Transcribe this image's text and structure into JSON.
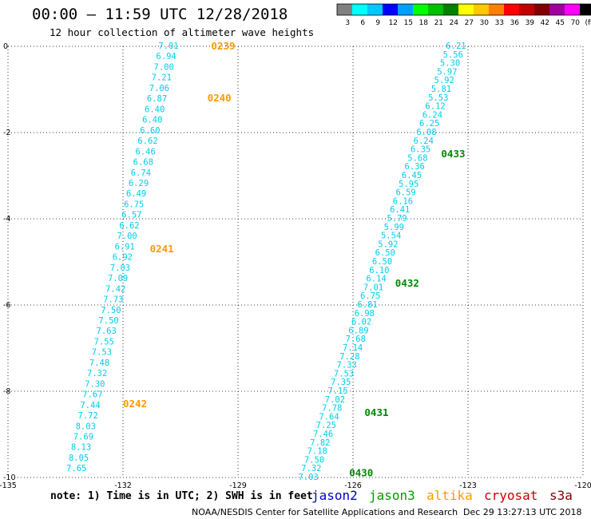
{
  "header": {
    "title": "00:00 – 11:59 UTC 12/28/2018",
    "subtitle": "12 hour collection of altimeter wave heights"
  },
  "legend": {
    "colors": [
      "#808080",
      "#00ffff",
      "#00c8ff",
      "#0000ff",
      "#00a0ff",
      "#00ff00",
      "#00c000",
      "#008000",
      "#ffff00",
      "#ffc800",
      "#ff8000",
      "#ff0000",
      "#c00000",
      "#800000",
      "#a000a0",
      "#ff00ff",
      "#000000"
    ],
    "labels": [
      "3",
      "6",
      "9",
      "12",
      "15",
      "18",
      "21",
      "24",
      "27",
      "30",
      "33",
      "36",
      "39",
      "42",
      "45",
      "70",
      "(ft)"
    ]
  },
  "chart_data": {
    "type": "scatter",
    "title": "00:00 – 11:59 UTC 12/28/2018",
    "subtitle": "12 hour collection of altimeter wave heights",
    "xlim": [
      -135,
      -120
    ],
    "ylim": [
      -10,
      0
    ],
    "x_ticks": [
      "-135",
      "-132",
      "-129",
      "-126",
      "-123",
      "-120"
    ],
    "y_ticks": [
      "0",
      "-2",
      "-4",
      "-6",
      "-8",
      "-10"
    ],
    "grid": true,
    "series": [
      {
        "name": "altika",
        "color": "#00ccee",
        "x_start": -130.55,
        "y_start": 0.0,
        "x_end": -132.95,
        "y_end": -9.8,
        "values": [
          "7.01",
          "6.94",
          "7.00",
          "7.21",
          "7.06",
          "6.87",
          "6.40",
          "6.40",
          "6.60",
          "6.62",
          "6.46",
          "6.68",
          "6.74",
          "6.29",
          "6.49",
          "6.75",
          "6.57",
          "6.62",
          "7.00",
          "6.91",
          "6.92",
          "7.03",
          "7.09",
          "7.42",
          "7.73",
          "7.50",
          "7.50",
          "7.63",
          "7.55",
          "7.53",
          "7.48",
          "7.32",
          "7.30",
          "7.67",
          "7.44",
          "7.72",
          "8.03",
          "7.69",
          "8.13",
          "8.05",
          "7.65"
        ]
      },
      {
        "name": "jason3",
        "color": "#00ccee",
        "x_start": -123.05,
        "y_start": 0.0,
        "x_end": -126.9,
        "y_end": -10.0,
        "values": [
          "6.21",
          "5.56",
          "5.30",
          "5.97",
          "5.92",
          "5.81",
          "5.53",
          "6.12",
          "6.24",
          "6.25",
          "6.08",
          "6.24",
          "6.35",
          "5.68",
          "6.36",
          "6.45",
          "5.95",
          "6.59",
          "6.16",
          "6.41",
          "5.79",
          "5.99",
          "5.54",
          "5.92",
          "6.50",
          "6.50",
          "6.10",
          "6.14",
          "7.01",
          "6.75",
          "6.81",
          "6.98",
          "6.02",
          "6.89",
          "7.68",
          "7.14",
          "7.28",
          "7.33",
          "7.53",
          "7.35",
          "7.15",
          "7.02",
          "7.78",
          "7.64",
          "7.25",
          "7.46",
          "7.82",
          "7.18",
          "7.50",
          "7.32",
          "7.03"
        ]
      }
    ],
    "pass_labels": [
      {
        "label": "0239",
        "color": "#ff9900",
        "x": -129.7,
        "y": 0.0
      },
      {
        "label": "0240",
        "color": "#ff9900",
        "x": -129.8,
        "y": -1.2
      },
      {
        "label": "0241",
        "color": "#ff9900",
        "x": -131.3,
        "y": -4.7
      },
      {
        "label": "0242",
        "color": "#ff9900",
        "x": -132.0,
        "y": -8.3
      },
      {
        "label": "0433",
        "color": "#008800",
        "x": -123.7,
        "y": -2.5
      },
      {
        "label": "0432",
        "color": "#008800",
        "x": -124.9,
        "y": -5.5
      },
      {
        "label": "0431",
        "color": "#008800",
        "x": -125.7,
        "y": -8.5
      },
      {
        "label": "0430",
        "color": "#008800",
        "x": -126.1,
        "y": -9.9
      }
    ]
  },
  "note": "note: 1) Time is in UTC; 2) SWH is in feet",
  "satellites": [
    {
      "name": "jason2",
      "color": "#0000cc"
    },
    {
      "name": "jason3",
      "color": "#009900"
    },
    {
      "name": "altika",
      "color": "#ff9900"
    },
    {
      "name": "cryosat",
      "color": "#cc0000"
    },
    {
      "name": "s3a",
      "color": "#800000"
    }
  ],
  "footer": {
    "org": "NOAA/NESDIS Center for Satellite Applications and Research",
    "timestamp": "Dec 29 13:27:13 UTC 2018"
  }
}
